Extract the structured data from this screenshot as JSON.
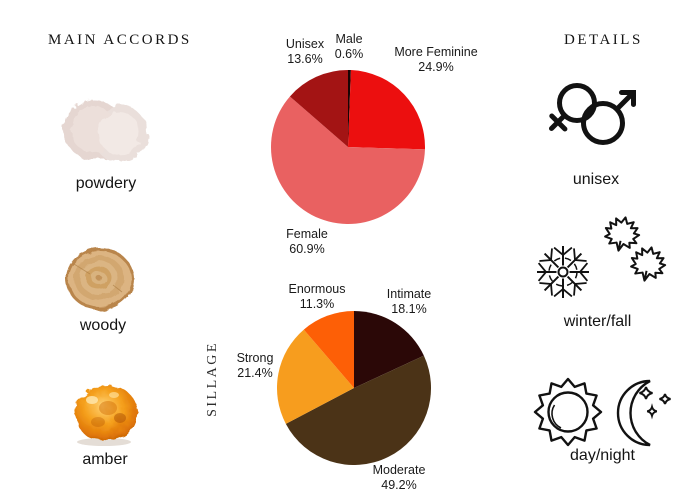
{
  "accords": {
    "heading": "MAIN ACCORDS",
    "items": [
      {
        "label": "powdery",
        "image": "powder-smear-photo"
      },
      {
        "label": "woody",
        "image": "wood-slice-photo"
      },
      {
        "label": "amber",
        "image": "amber-resin-photo"
      }
    ]
  },
  "details": {
    "heading": "DETAILS",
    "items": [
      {
        "label": "unisex",
        "icon": "gender-unisex-icon"
      },
      {
        "label": "winter/fall",
        "icon": "snowflake-maple-leaves-icon"
      },
      {
        "label": "day/night",
        "icon": "sun-moon-icon"
      }
    ]
  },
  "sillage_axis_label": "SILLAGE",
  "chart_data": [
    {
      "type": "pie",
      "name": "gender-votes-pie",
      "start_angle_deg": 0,
      "direction": "clockwise",
      "slices": [
        {
          "label": "Male",
          "value": 0.6,
          "pct_label": "0.6%",
          "color": "#180404"
        },
        {
          "label": "More Feminine",
          "value": 24.9,
          "pct_label": "24.9%",
          "color": "#ec0f0f"
        },
        {
          "label": "Female",
          "value": 60.9,
          "pct_label": "60.9%",
          "color": "#e96161"
        },
        {
          "label": "Unisex",
          "value": 13.6,
          "pct_label": "13.6%",
          "color": "#a31414"
        }
      ]
    },
    {
      "type": "pie",
      "name": "sillage-votes-pie",
      "axis_label": "SILLAGE",
      "start_angle_deg": 0,
      "direction": "clockwise",
      "slices": [
        {
          "label": "Intimate",
          "value": 18.1,
          "pct_label": "18.1%",
          "color": "#2b0807"
        },
        {
          "label": "Moderate",
          "value": 49.2,
          "pct_label": "49.2%",
          "color": "#4b3317"
        },
        {
          "label": "Strong",
          "value": 21.4,
          "pct_label": "21.4%",
          "color": "#f79d1e"
        },
        {
          "label": "Enormous",
          "value": 11.3,
          "pct_label": "11.3%",
          "color": "#fd5f06"
        }
      ]
    }
  ]
}
